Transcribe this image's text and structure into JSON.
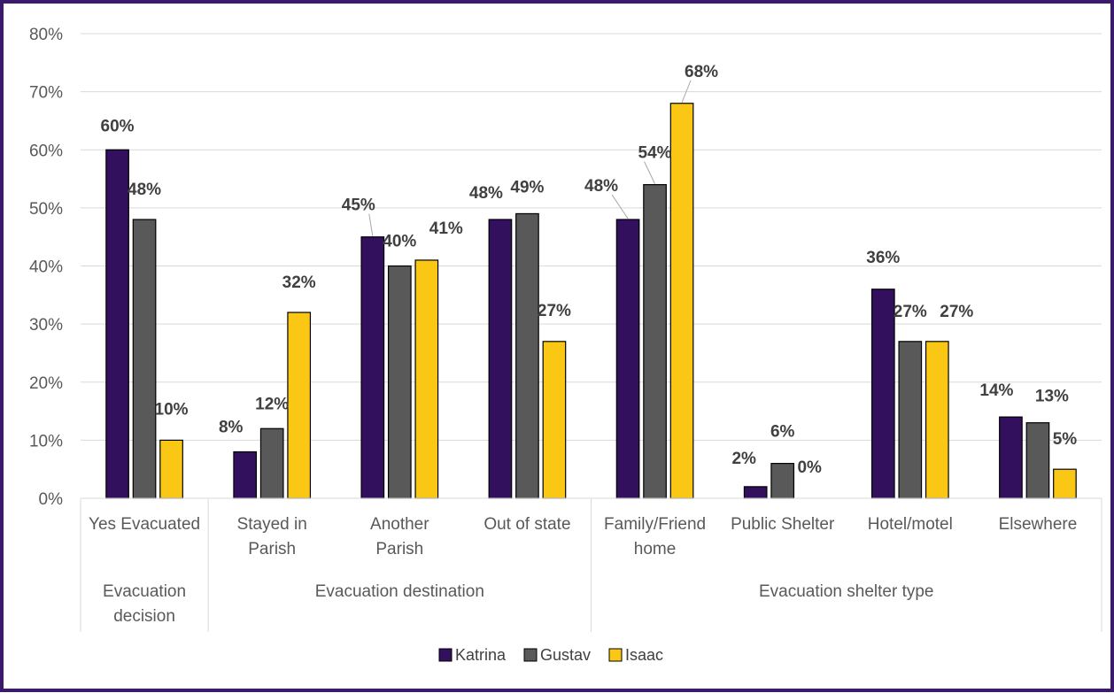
{
  "chart_data": {
    "type": "bar",
    "ylim": [
      0,
      80
    ],
    "y_ticks": [
      "0%",
      "10%",
      "20%",
      "30%",
      "40%",
      "50%",
      "60%",
      "70%",
      "80%"
    ],
    "grid": true,
    "legend_position": "bottom",
    "colors": {
      "Katrina": "#33105e",
      "Gustav": "#595959",
      "Isaac": "#fac715",
      "frame": "#3b1a6b",
      "grid": "#d9d9d9"
    },
    "categories": [
      {
        "label": [
          "Yes Evacuated"
        ],
        "group": 0
      },
      {
        "label": [
          "Stayed in",
          "Parish"
        ],
        "group": 1
      },
      {
        "label": [
          "Another",
          "Parish"
        ],
        "group": 1
      },
      {
        "label": [
          "Out of state"
        ],
        "group": 1
      },
      {
        "label": [
          "Family/Friend",
          "home"
        ],
        "group": 2
      },
      {
        "label": [
          "Public Shelter"
        ],
        "group": 2
      },
      {
        "label": [
          "Hotel/motel"
        ],
        "group": 2
      },
      {
        "label": [
          "Elsewhere"
        ],
        "group": 2
      }
    ],
    "groups": [
      {
        "label": [
          "Evacuation",
          "decision"
        ]
      },
      {
        "label": [
          "Evacuation destination"
        ]
      },
      {
        "label": [
          "Evacuation shelter type"
        ]
      }
    ],
    "series": [
      {
        "name": "Katrina",
        "values": [
          60,
          8,
          45,
          48,
          48,
          2,
          36,
          14
        ],
        "labels": [
          "60%",
          "8%",
          "45%",
          "48%",
          "48%",
          "2%",
          "36%",
          "14%"
        ]
      },
      {
        "name": "Gustav",
        "values": [
          48,
          12,
          40,
          49,
          54,
          6,
          27,
          13
        ],
        "labels": [
          "48%",
          "12%",
          "40%",
          "49%",
          "54%",
          "6%",
          "27%",
          "13%"
        ]
      },
      {
        "name": "Isaac",
        "values": [
          10,
          32,
          41,
          27,
          68,
          0,
          27,
          5
        ],
        "labels": [
          "10%",
          "32%",
          "41%",
          "27%",
          "68%",
          "0%",
          "27%",
          "5%"
        ]
      }
    ]
  }
}
